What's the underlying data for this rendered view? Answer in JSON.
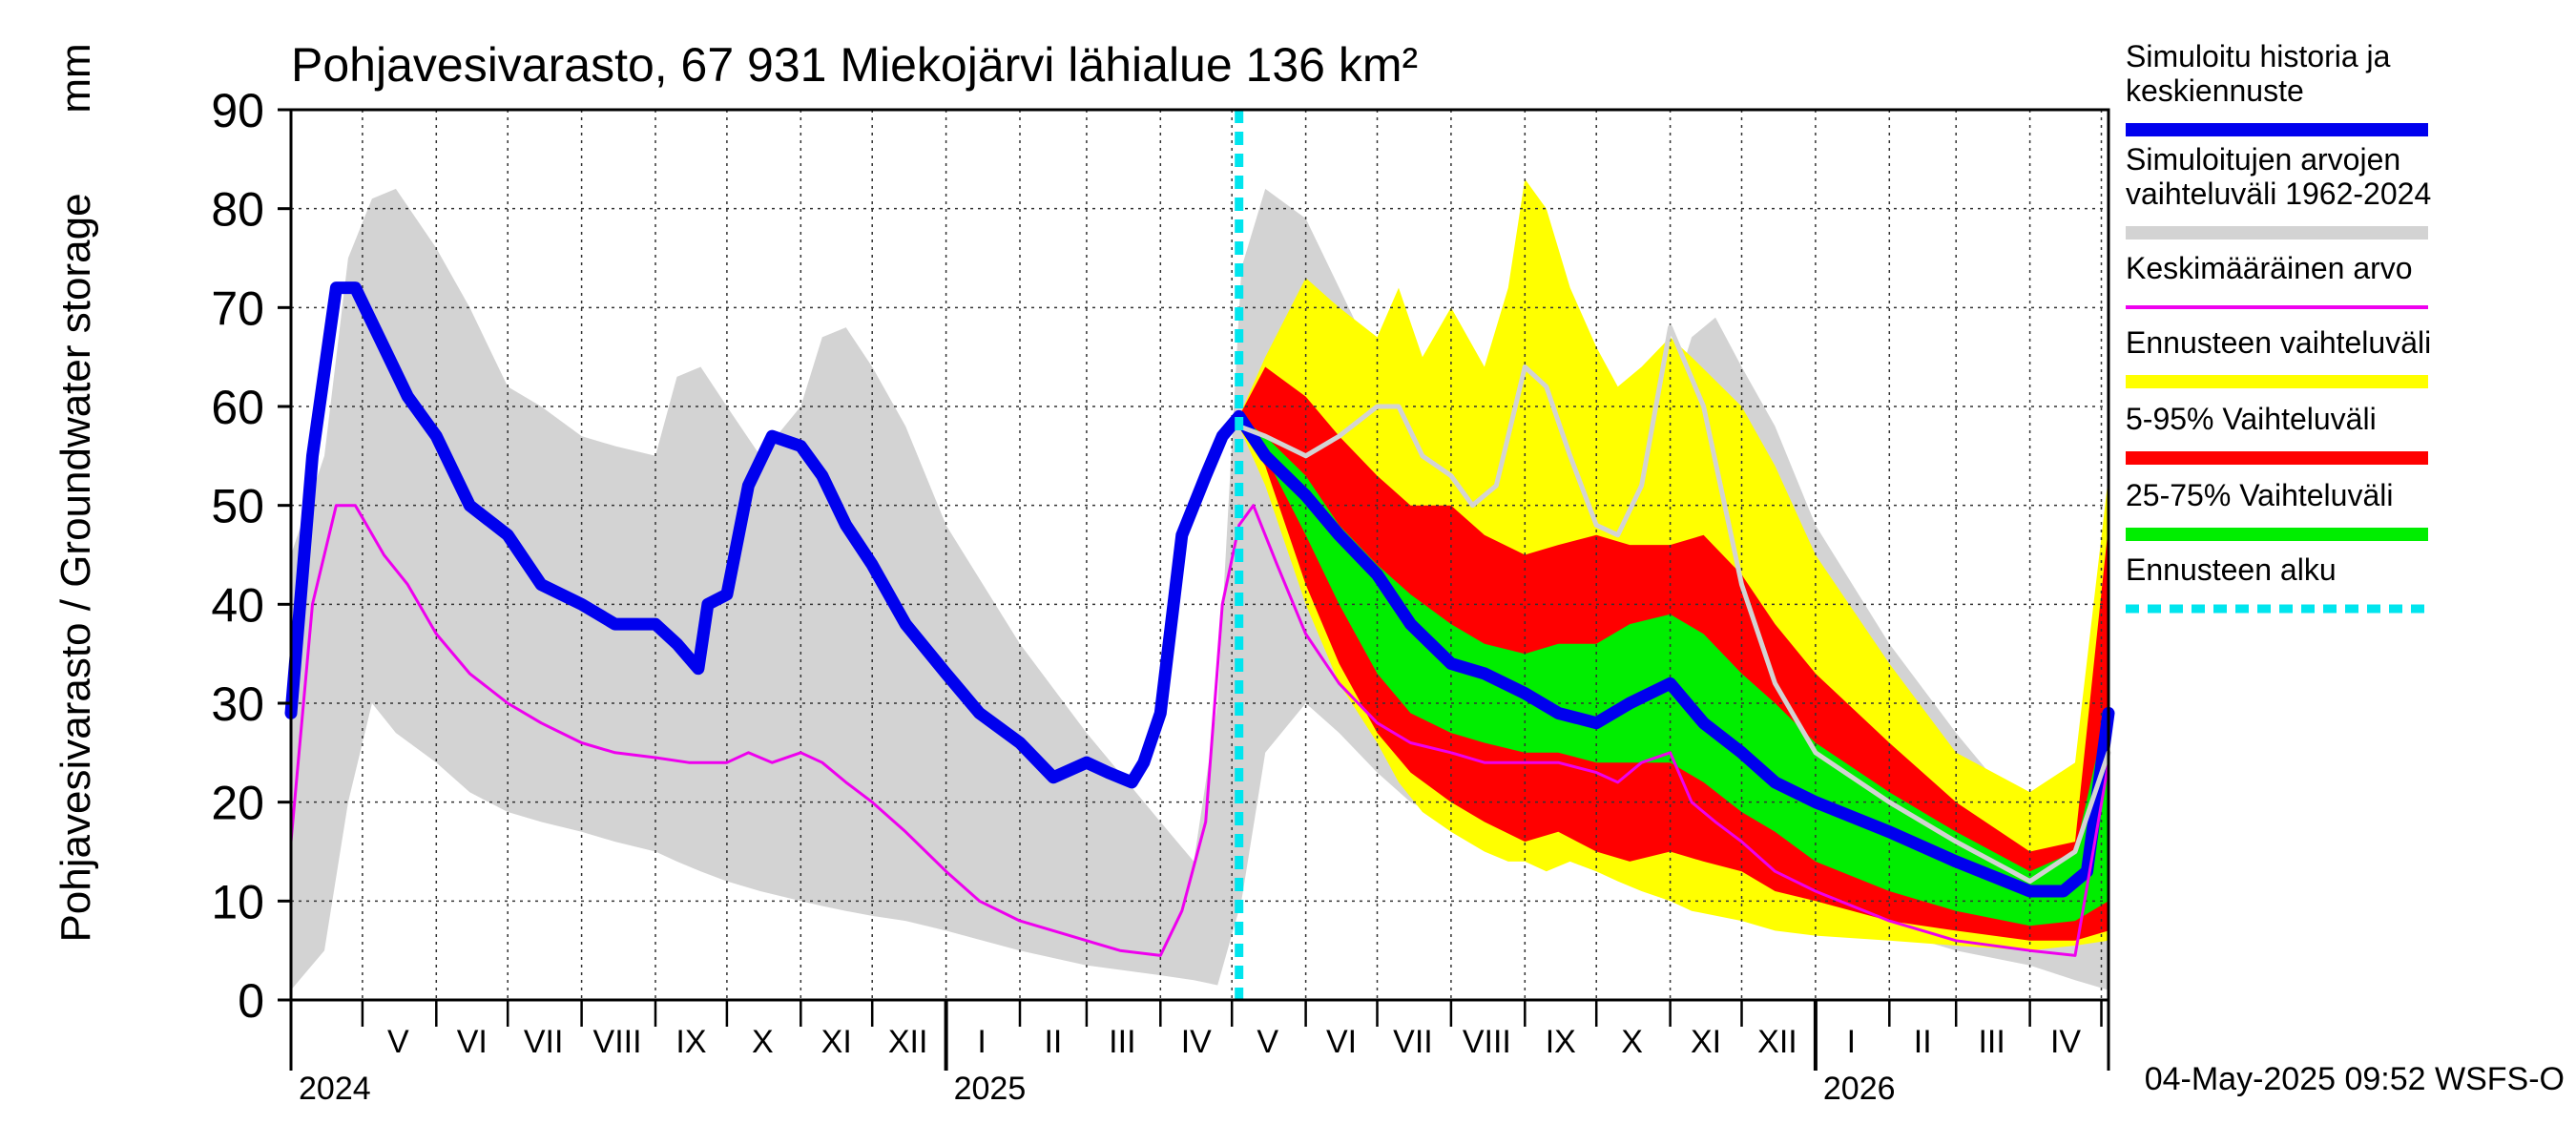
{
  "chart_data": {
    "type": "area",
    "title": "Pohjavesivarasto, 67 931 Miekojärvi lähialue 136 km²",
    "ylabel": "Pohjavesivarasto / Groundwater storage",
    "yunit": "mm",
    "ylim": [
      0,
      90
    ],
    "yticks": [
      0,
      10,
      20,
      30,
      40,
      50,
      60,
      70,
      80,
      90
    ],
    "xlim": [
      "2024-04-01",
      "2026-05-04"
    ],
    "grid": true,
    "legend_position": "right",
    "month_labels": [
      {
        "label": "V",
        "date": "2024-05-16"
      },
      {
        "label": "VI",
        "date": "2024-06-16"
      },
      {
        "label": "VII",
        "date": "2024-07-16"
      },
      {
        "label": "VIII",
        "date": "2024-08-16"
      },
      {
        "label": "IX",
        "date": "2024-09-16"
      },
      {
        "label": "X",
        "date": "2024-10-16"
      },
      {
        "label": "XI",
        "date": "2024-11-16"
      },
      {
        "label": "XII",
        "date": "2024-12-16"
      },
      {
        "label": "I",
        "date": "2025-01-16"
      },
      {
        "label": "II",
        "date": "2025-02-15"
      },
      {
        "label": "III",
        "date": "2025-03-16"
      },
      {
        "label": "IV",
        "date": "2025-04-16"
      },
      {
        "label": "V",
        "date": "2025-05-16"
      },
      {
        "label": "VI",
        "date": "2025-06-16"
      },
      {
        "label": "VII",
        "date": "2025-07-16"
      },
      {
        "label": "VIII",
        "date": "2025-08-16"
      },
      {
        "label": "IX",
        "date": "2025-09-16"
      },
      {
        "label": "X",
        "date": "2025-10-16"
      },
      {
        "label": "XI",
        "date": "2025-11-16"
      },
      {
        "label": "XII",
        "date": "2025-12-16"
      },
      {
        "label": "I",
        "date": "2026-01-16"
      },
      {
        "label": "II",
        "date": "2026-02-15"
      },
      {
        "label": "III",
        "date": "2026-03-16"
      },
      {
        "label": "IV",
        "date": "2026-04-16"
      }
    ],
    "year_labels": [
      {
        "label": "2024",
        "date": "2024-04-01"
      },
      {
        "label": "2025",
        "date": "2025-01-01"
      },
      {
        "label": "2026",
        "date": "2026-01-01"
      }
    ],
    "forecast_start": "2025-05-04",
    "footer": "04-May-2025 09:52 WSFS-O",
    "legend": [
      {
        "label": "Simuloitu historia ja keskiennuste",
        "color": "#0000ee",
        "style": "thick"
      },
      {
        "label": "Simuloitujen arvojen vaihteluväli 1962-2024",
        "color": "#d3d3d3",
        "style": "thick"
      },
      {
        "label": "Keskimääräinen arvo",
        "color": "#ee00ee",
        "style": "thin"
      },
      {
        "label": "Ennusteen vaihteluväli",
        "color": "#ffff00",
        "style": "thick"
      },
      {
        "label": "5-95% Vaihteluväli",
        "color": "#ff0000",
        "style": "thick"
      },
      {
        "label": "25-75% Vaihteluväli",
        "color": "#00ee00",
        "style": "thick"
      },
      {
        "label": "Ennusteen alku",
        "color": "#00e5ee",
        "style": "dashed"
      }
    ],
    "series": [
      {
        "name": "Simuloitujen arvojen vaihteluväli 1962-2024",
        "kind": "band",
        "color": "#d3d3d3",
        "x": [
          "2024-04-01",
          "2024-04-15",
          "2024-04-25",
          "2024-05-05",
          "2024-05-15",
          "2024-06-01",
          "2024-06-15",
          "2024-07-01",
          "2024-07-15",
          "2024-08-01",
          "2024-08-15",
          "2024-09-01",
          "2024-09-10",
          "2024-09-20",
          "2024-10-01",
          "2024-10-15",
          "2024-11-01",
          "2024-11-10",
          "2024-11-20",
          "2024-12-01",
          "2024-12-15",
          "2025-01-01",
          "2025-02-01",
          "2025-03-01",
          "2025-04-01",
          "2025-04-15",
          "2025-04-25",
          "2025-05-05",
          "2025-05-15",
          "2025-06-01",
          "2025-06-15",
          "2025-07-01",
          "2025-07-15",
          "2025-08-01",
          "2025-08-15",
          "2025-09-01",
          "2025-09-10",
          "2025-09-20",
          "2025-10-01",
          "2025-10-15",
          "2025-11-01",
          "2025-11-10",
          "2025-11-20",
          "2025-12-01",
          "2025-12-15",
          "2026-01-01",
          "2026-02-01",
          "2026-03-01",
          "2026-04-01",
          "2026-04-20",
          "2026-05-04"
        ],
        "upper": [
          45,
          55,
          75,
          81,
          82,
          76,
          70,
          62,
          60,
          57,
          56,
          55,
          63,
          64,
          60,
          55,
          60,
          67,
          68,
          64,
          58,
          48,
          36,
          27,
          18,
          14,
          30,
          74,
          82,
          79,
          72,
          64,
          63,
          58,
          57,
          56,
          63,
          64,
          60,
          55,
          60,
          67,
          69,
          64,
          58,
          48,
          36,
          27,
          18,
          22,
          28
        ],
        "lower": [
          1,
          5,
          20,
          30,
          27,
          24,
          21,
          19,
          18,
          17,
          16,
          15,
          14,
          13,
          12,
          11,
          10,
          9.5,
          9,
          8.5,
          8,
          7,
          5,
          3.5,
          2.5,
          2,
          1.5,
          10,
          25,
          30,
          27,
          23,
          20,
          18,
          17,
          16,
          15,
          14,
          13,
          12,
          11,
          10,
          9.5,
          9,
          8.5,
          8,
          7,
          5,
          3.5,
          2,
          1
        ]
      },
      {
        "name": "Ennusteen vaihteluväli",
        "kind": "band",
        "color": "#ffff00",
        "x": [
          "2025-05-04",
          "2025-05-15",
          "2025-06-01",
          "2025-06-15",
          "2025-07-01",
          "2025-07-10",
          "2025-07-20",
          "2025-08-01",
          "2025-08-15",
          "2025-08-25",
          "2025-09-01",
          "2025-09-10",
          "2025-09-20",
          "2025-10-01",
          "2025-10-10",
          "2025-10-20",
          "2025-11-01",
          "2025-11-10",
          "2025-12-01",
          "2025-12-15",
          "2026-01-01",
          "2026-02-01",
          "2026-03-01",
          "2026-04-01",
          "2026-04-20",
          "2026-05-04"
        ],
        "upper": [
          59,
          65,
          73,
          70,
          67,
          72,
          65,
          70,
          64,
          72,
          83,
          80,
          72,
          66,
          62,
          64,
          67,
          65,
          60,
          54,
          45,
          34,
          25,
          21,
          24,
          53
        ],
        "lower": [
          58,
          52,
          40,
          32,
          26,
          22,
          19,
          17,
          15,
          14,
          14,
          13,
          14,
          13,
          12,
          11,
          10,
          9,
          8,
          7,
          6.5,
          6,
          5.5,
          5,
          5.5,
          6
        ]
      },
      {
        "name": "5-95% Vaihteluväli",
        "kind": "band",
        "color": "#ff0000",
        "x": [
          "2025-05-04",
          "2025-05-15",
          "2025-06-01",
          "2025-06-15",
          "2025-07-01",
          "2025-07-15",
          "2025-08-01",
          "2025-08-15",
          "2025-09-01",
          "2025-09-15",
          "2025-10-01",
          "2025-10-15",
          "2025-11-01",
          "2025-11-15",
          "2025-12-01",
          "2025-12-15",
          "2026-01-01",
          "2026-02-01",
          "2026-03-01",
          "2026-04-01",
          "2026-04-20",
          "2026-05-04"
        ],
        "upper": [
          59,
          64,
          61,
          57,
          53,
          50,
          50,
          47,
          45,
          46,
          47,
          46,
          46,
          47,
          43,
          38,
          33,
          26,
          20,
          15,
          16,
          48
        ],
        "lower": [
          58,
          54,
          42,
          34,
          27,
          23,
          20,
          18,
          16,
          17,
          15,
          14,
          15,
          14,
          13,
          11,
          10,
          8,
          7,
          6,
          6,
          7
        ]
      },
      {
        "name": "25-75% Vaihteluväli",
        "kind": "band",
        "color": "#00ee00",
        "x": [
          "2025-05-04",
          "2025-05-15",
          "2025-06-01",
          "2025-06-15",
          "2025-07-01",
          "2025-07-15",
          "2025-08-01",
          "2025-08-15",
          "2025-09-01",
          "2025-09-15",
          "2025-10-01",
          "2025-10-15",
          "2025-11-01",
          "2025-11-15",
          "2025-12-01",
          "2025-12-15",
          "2026-01-01",
          "2026-02-01",
          "2026-03-01",
          "2026-04-01",
          "2026-04-20",
          "2026-05-04"
        ],
        "upper": [
          59,
          57,
          53,
          48,
          44,
          41,
          38,
          36,
          35,
          36,
          36,
          38,
          39,
          37,
          33,
          30,
          26,
          21,
          17,
          13,
          15,
          30
        ],
        "lower": [
          58,
          55,
          47,
          40,
          33,
          29,
          27,
          26,
          25,
          25,
          24,
          24,
          24,
          22,
          19,
          17,
          14,
          11,
          9,
          7.5,
          8,
          10
        ]
      },
      {
        "name": "Simuloitu historia ja keskiennuste",
        "kind": "line",
        "color": "#0000ee",
        "width": 13,
        "x": [
          "2024-04-01",
          "2024-04-10",
          "2024-04-20",
          "2024-04-28",
          "2024-05-10",
          "2024-05-20",
          "2024-06-01",
          "2024-06-15",
          "2024-07-01",
          "2024-07-15",
          "2024-08-01",
          "2024-08-15",
          "2024-09-01",
          "2024-09-10",
          "2024-09-19",
          "2024-09-23",
          "2024-10-01",
          "2024-10-10",
          "2024-10-20",
          "2024-11-01",
          "2024-11-10",
          "2024-11-20",
          "2024-12-01",
          "2024-12-15",
          "2025-01-01",
          "2025-01-15",
          "2025-02-01",
          "2025-02-15",
          "2025-03-01",
          "2025-03-10",
          "2025-03-20",
          "2025-03-25",
          "2025-04-01",
          "2025-04-10",
          "2025-04-20",
          "2025-04-27",
          "2025-05-04",
          "2025-05-15",
          "2025-06-01",
          "2025-06-15",
          "2025-07-01",
          "2025-07-15",
          "2025-08-01",
          "2025-08-15",
          "2025-09-01",
          "2025-09-15",
          "2025-10-01",
          "2025-10-15",
          "2025-11-01",
          "2025-11-15",
          "2025-12-01",
          "2025-12-15",
          "2026-01-01",
          "2026-02-01",
          "2026-03-01",
          "2026-04-01",
          "2026-04-15",
          "2026-04-25",
          "2026-05-04"
        ],
        "values": [
          29,
          55,
          72,
          72,
          66,
          61,
          57,
          50,
          47,
          42,
          40,
          38,
          38,
          36,
          33.5,
          40,
          41,
          52,
          57,
          56,
          53,
          48,
          44,
          38,
          33,
          29,
          26,
          22.5,
          24,
          23,
          22,
          24,
          29,
          47,
          53,
          57,
          59,
          55,
          51,
          47,
          43,
          38,
          34,
          33,
          31,
          29,
          28,
          30,
          32,
          28,
          25,
          22,
          20,
          17,
          14,
          11,
          11,
          13,
          29
        ]
      },
      {
        "name": "Keskimääräinen arvo",
        "kind": "line",
        "color": "#ee00ee",
        "width": 3,
        "x": [
          "2024-04-01",
          "2024-04-10",
          "2024-04-20",
          "2024-04-28",
          "2024-05-10",
          "2024-05-20",
          "2024-06-01",
          "2024-06-15",
          "2024-07-01",
          "2024-07-15",
          "2024-08-01",
          "2024-08-15",
          "2024-09-01",
          "2024-09-15",
          "2024-10-01",
          "2024-10-10",
          "2024-10-20",
          "2024-11-01",
          "2024-11-10",
          "2024-11-20",
          "2024-12-01",
          "2024-12-15",
          "2025-01-01",
          "2025-01-15",
          "2025-02-01",
          "2025-02-15",
          "2025-03-01",
          "2025-03-15",
          "2025-04-01",
          "2025-04-10",
          "2025-04-20",
          "2025-04-27",
          "2025-05-04",
          "2025-05-10",
          "2025-05-20",
          "2025-06-01",
          "2025-06-15",
          "2025-07-01",
          "2025-07-15",
          "2025-08-01",
          "2025-08-15",
          "2025-09-01",
          "2025-09-15",
          "2025-10-01",
          "2025-10-10",
          "2025-10-20",
          "2025-11-01",
          "2025-11-10",
          "2025-11-20",
          "2025-12-01",
          "2025-12-15",
          "2026-01-01",
          "2026-02-01",
          "2026-03-01",
          "2026-04-01",
          "2026-04-20",
          "2026-05-04"
        ],
        "values": [
          16,
          40,
          50,
          50,
          45,
          42,
          37,
          33,
          30,
          28,
          26,
          25,
          24.5,
          24,
          24,
          25,
          24,
          25,
          24,
          22,
          20,
          17,
          13,
          10,
          8,
          7,
          6,
          5,
          4.5,
          9,
          18,
          40,
          48,
          50,
          44,
          37,
          32,
          28,
          26,
          25,
          24,
          24,
          24,
          23,
          22,
          24,
          25,
          20,
          18,
          16,
          13,
          11,
          8,
          6,
          5,
          4.5,
          24
        ]
      },
      {
        "name": "Simuloitu (harmaa viiva)",
        "kind": "line",
        "color": "#d3d3d3",
        "width": 5,
        "x": [
          "2025-05-04",
          "2025-05-15",
          "2025-06-01",
          "2025-06-15",
          "2025-07-01",
          "2025-07-10",
          "2025-07-20",
          "2025-08-01",
          "2025-08-10",
          "2025-08-20",
          "2025-09-01",
          "2025-09-10",
          "2025-09-20",
          "2025-10-01",
          "2025-10-10",
          "2025-10-20",
          "2025-11-01",
          "2025-11-15",
          "2025-12-01",
          "2025-12-15",
          "2026-01-01",
          "2026-02-01",
          "2026-03-01",
          "2026-04-01",
          "2026-04-20",
          "2026-05-04"
        ],
        "values": [
          58,
          57,
          55,
          57,
          60,
          60,
          55,
          53,
          50,
          52,
          64,
          62,
          55,
          48,
          47,
          52,
          68,
          60,
          42,
          32,
          25,
          20,
          16,
          12,
          15,
          25
        ]
      }
    ]
  }
}
